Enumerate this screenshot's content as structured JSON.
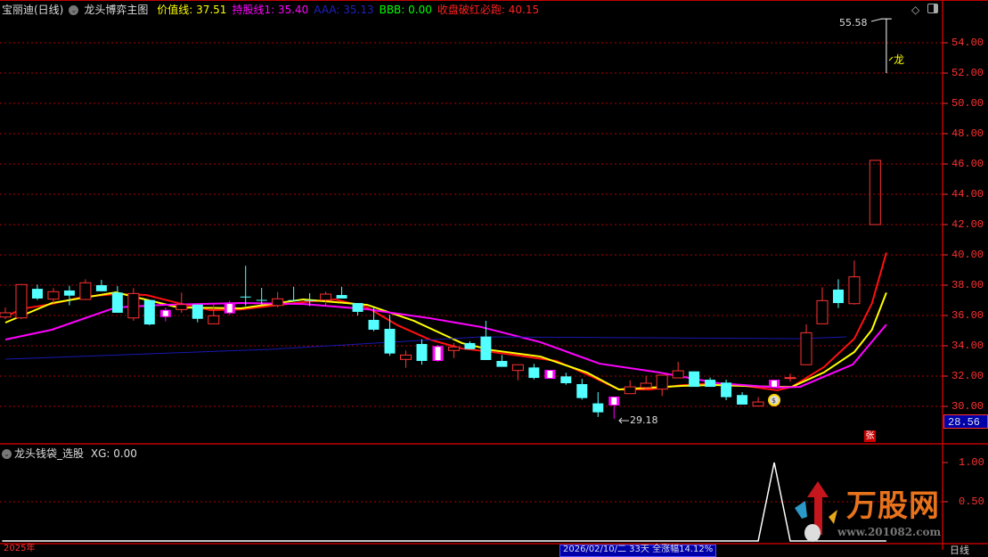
{
  "header": {
    "stock": "宝丽迪(日线)",
    "indicator_name": "龙头博弈主图",
    "items": [
      {
        "label": "价值线: 37.51",
        "color": "#ffff00"
      },
      {
        "label": "持股线1: 35.40",
        "color": "#ff00ff"
      },
      {
        "label": "AAA: 35.13",
        "color": "#2020c0"
      },
      {
        "label": "BBB: 0.00",
        "color": "#00ff00"
      },
      {
        "label": "收盘破红必跑: 40.15",
        "color": "#ff2020"
      }
    ]
  },
  "sub_header": {
    "indicator_name": "龙头钱袋_选股",
    "value": "XG: 0.00"
  },
  "annotations": {
    "high_label": "55.58",
    "low_label": "29.18",
    "dragon_label": "龙",
    "zhang_badge": "张",
    "last_price": "28.56"
  },
  "footer": {
    "left": "2025年",
    "info": "2026/02/10/二 33天 全涨幅14.12%",
    "right": "日线"
  },
  "logo": {
    "text": "万股网",
    "url": "www.201082.com"
  },
  "colors": {
    "up": "#ff3232",
    "down": "#54ffff",
    "special": "#ff00ff",
    "grid": "#b00000",
    "axis": "#ff3232"
  },
  "chart_data": [
    {
      "type": "candlestick",
      "title": "龙头博弈主图",
      "ylim": [
        28,
        56
      ],
      "yticks": [
        "54.00",
        "52.00",
        "50.00",
        "48.00",
        "46.00",
        "44.00",
        "42.00",
        "40.00",
        "38.00",
        "36.00",
        "34.00",
        "32.00",
        "30.00"
      ],
      "grid": true,
      "candles_ohlc": [
        [
          35.9,
          36.53,
          35.76,
          36.18
        ],
        [
          35.84,
          38.04,
          35.76,
          38.04
        ],
        [
          37.76,
          38.04,
          37.02,
          37.12
        ],
        [
          37.08,
          37.81,
          36.82,
          37.57
        ],
        [
          37.65,
          37.96,
          36.67,
          37.31
        ],
        [
          37.06,
          38.39,
          37.02,
          38.16
        ],
        [
          38.0,
          38.35,
          37.6,
          37.6
        ],
        [
          37.51,
          37.94,
          36.18,
          36.18
        ],
        [
          35.84,
          37.81,
          35.65,
          37.45
        ],
        [
          37.02,
          37.02,
          35.35,
          35.41
        ],
        [
          36.37,
          36.53,
          35.61,
          35.9
        ],
        [
          36.39,
          37.51,
          36.18,
          36.72
        ],
        [
          36.72,
          36.72,
          35.55,
          35.78
        ],
        [
          35.45,
          36.72,
          35.45,
          35.98
        ],
        [
          36.82,
          36.98,
          36.04,
          36.14
        ],
        [
          37.25,
          39.28,
          36.63,
          37.19
        ],
        [
          37.03,
          37.82,
          36.63,
          37.0
        ],
        [
          36.66,
          37.55,
          36.53,
          37.1
        ],
        [
          37.02,
          37.9,
          37.0,
          37.0
        ],
        [
          37.02,
          37.47,
          36.63,
          37.0
        ],
        [
          37.02,
          37.57,
          36.63,
          37.41
        ],
        [
          37.35,
          37.9,
          37.12,
          37.12
        ],
        [
          36.82,
          36.82,
          36.0,
          36.24
        ],
        [
          35.71,
          36.53,
          34.96,
          35.06
        ],
        [
          35.12,
          36.04,
          33.34,
          33.49
        ],
        [
          33.1,
          33.69,
          32.55,
          33.39
        ],
        [
          34.12,
          34.43,
          32.75,
          33.0
        ],
        [
          33.98,
          34.06,
          32.94,
          33.0
        ],
        [
          33.69,
          34.18,
          33.19,
          33.92
        ],
        [
          34.18,
          34.3,
          33.78,
          33.78
        ],
        [
          34.61,
          35.65,
          33.06,
          33.06
        ],
        [
          33.0,
          33.39,
          32.61,
          32.61
        ],
        [
          32.37,
          32.75,
          31.72,
          32.75
        ],
        [
          32.57,
          32.81,
          31.78,
          31.88
        ],
        [
          32.41,
          32.41,
          31.82,
          31.82
        ],
        [
          31.98,
          32.22,
          31.43,
          31.53
        ],
        [
          31.47,
          31.82,
          30.45,
          30.55
        ],
        [
          30.2,
          30.94,
          29.3,
          29.61
        ],
        [
          30.65,
          30.65,
          29.18,
          30.06
        ],
        [
          30.84,
          31.72,
          30.84,
          31.29
        ],
        [
          31.24,
          32.02,
          31.14,
          31.53
        ],
        [
          31.14,
          32.06,
          30.69,
          32.06
        ],
        [
          31.88,
          32.94,
          31.88,
          32.35
        ],
        [
          32.31,
          32.31,
          31.29,
          31.29
        ],
        [
          31.76,
          31.9,
          31.29,
          31.29
        ],
        [
          31.57,
          31.76,
          30.41,
          30.61
        ],
        [
          30.75,
          30.94,
          30.12,
          30.12
        ],
        [
          30.02,
          30.61,
          30.02,
          30.29
        ],
        [
          31.76,
          31.76,
          31.24,
          31.24
        ],
        [
          31.86,
          32.16,
          31.63,
          31.9
        ],
        [
          32.75,
          35.41,
          32.75,
          34.86
        ],
        [
          35.45,
          37.86,
          35.45,
          36.98
        ],
        [
          37.71,
          38.39,
          36.49,
          36.82
        ],
        [
          36.78,
          39.63,
          36.72,
          38.55
        ]
      ],
      "special_candles": [
        10,
        14,
        27,
        34,
        38,
        48
      ],
      "money_bag_at": 48,
      "signal_box": {
        "index": 54.3,
        "low": 42.0,
        "high": 46.24
      },
      "high_marker": {
        "index": 55,
        "high": 55.58,
        "low": 52.0
      },
      "series": [
        {
          "name": "收盘破红必跑",
          "color": "#ff1010",
          "points": [
            [
              0,
              35.9
            ],
            [
              1,
              36.43
            ],
            [
              2.9,
              36.76
            ],
            [
              4.9,
              37.24
            ],
            [
              6.9,
              37.41
            ],
            [
              8.8,
              37.35
            ],
            [
              10.8,
              36.82
            ],
            [
              12.8,
              36.35
            ],
            [
              14.7,
              36.4
            ],
            [
              16.7,
              36.65
            ],
            [
              18.6,
              36.88
            ],
            [
              20.6,
              37.06
            ],
            [
              22.6,
              36.53
            ],
            [
              24.5,
              35.35
            ],
            [
              26.5,
              34.41
            ],
            [
              28.5,
              33.82
            ],
            [
              30.4,
              33.59
            ],
            [
              32.4,
              33.3
            ],
            [
              34.4,
              33.0
            ],
            [
              36.3,
              32.12
            ],
            [
              38.3,
              31.12
            ],
            [
              40.3,
              31.12
            ],
            [
              42.2,
              31.4
            ],
            [
              44.2,
              31.53
            ],
            [
              46.2,
              31.35
            ],
            [
              48.2,
              31.06
            ],
            [
              49.1,
              31.29
            ],
            [
              51.1,
              32.59
            ],
            [
              53,
              34.47
            ],
            [
              54.1,
              36.8
            ],
            [
              55,
              40.15
            ]
          ]
        },
        {
          "name": "价值线",
          "color": "#ffff00",
          "points": [
            [
              0,
              35.53
            ],
            [
              2.9,
              36.82
            ],
            [
              6.9,
              37.53
            ],
            [
              10.8,
              36.53
            ],
            [
              14.7,
              36.47
            ],
            [
              18.6,
              37.06
            ],
            [
              22.6,
              36.7
            ],
            [
              25.5,
              35.65
            ],
            [
              28.5,
              34.18
            ],
            [
              30.4,
              33.71
            ],
            [
              33.4,
              33.29
            ],
            [
              36.3,
              32.24
            ],
            [
              38.3,
              31.12
            ],
            [
              42.2,
              31.35
            ],
            [
              44.2,
              31.41
            ],
            [
              48.2,
              31.29
            ],
            [
              49.1,
              31.29
            ],
            [
              51.1,
              32.24
            ],
            [
              53,
              33.59
            ],
            [
              54.1,
              35.06
            ],
            [
              55,
              37.51
            ]
          ]
        },
        {
          "name": "持股线1",
          "color": "#ff00ff",
          "points": [
            [
              0,
              34.41
            ],
            [
              2.9,
              35.06
            ],
            [
              6.9,
              36.53
            ],
            [
              9.8,
              36.7
            ],
            [
              14.7,
              36.82
            ],
            [
              18.6,
              36.76
            ],
            [
              22.6,
              36.41
            ],
            [
              24.5,
              36.12
            ],
            [
              26.5,
              35.82
            ],
            [
              29.7,
              35.24
            ],
            [
              33.4,
              34.24
            ],
            [
              37.1,
              32.82
            ],
            [
              40.8,
              32.24
            ],
            [
              44.5,
              31.53
            ],
            [
              48.2,
              31.24
            ],
            [
              49.6,
              31.29
            ],
            [
              52.9,
              32.76
            ],
            [
              55,
              35.4
            ]
          ]
        },
        {
          "name": "AAA",
          "color": "#1818b0",
          "points": [
            [
              0,
              33.12
            ],
            [
              16.4,
              33.76
            ],
            [
              29.7,
              34.59
            ],
            [
              49.7,
              34.47
            ],
            [
              52.5,
              34.59
            ]
          ]
        }
      ]
    },
    {
      "type": "line",
      "title": "龙头钱袋_选股",
      "ylim": [
        0,
        1.1
      ],
      "yticks": [
        "1.00",
        "0.50"
      ],
      "series": [
        {
          "name": "XG",
          "color": "#ffffff",
          "points": [
            [
              -0.2,
              0
            ],
            [
              47,
              0
            ],
            [
              48,
              1
            ],
            [
              49,
              0
            ],
            [
              55,
              0
            ]
          ]
        }
      ]
    }
  ]
}
